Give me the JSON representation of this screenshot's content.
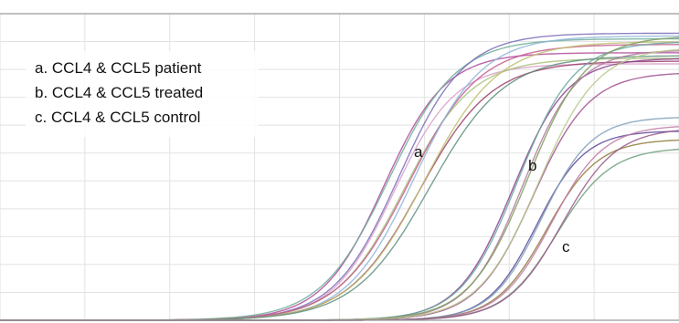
{
  "chart_data": {
    "type": "line",
    "title": "",
    "xlabel": "",
    "ylabel": "",
    "grid": true,
    "legend_position": "top-left",
    "legend": [
      "a. CCL4 & CCL5 patient",
      "b. CCL4 & CCL5 treated",
      "c. CCL4 & CCL5 control"
    ],
    "curve_labels": [
      "a",
      "b",
      "c"
    ],
    "xlim": [
      0,
      40
    ],
    "ylim": [
      0,
      11
    ],
    "x_gridlines": 8,
    "y_gridlines": 11,
    "series": [
      {
        "group": "a",
        "color": "#b04a9a",
        "midpoint": 22.6,
        "steepness": 0.55,
        "plateau": 9.6
      },
      {
        "group": "a",
        "color": "#6fae9a",
        "midpoint": 22.9,
        "steepness": 0.5,
        "plateau": 10.1
      },
      {
        "group": "a",
        "color": "#d9a0c8",
        "midpoint": 23.2,
        "steepness": 0.55,
        "plateau": 9.2
      },
      {
        "group": "a",
        "color": "#7b6cb8",
        "midpoint": 23.5,
        "steepness": 0.52,
        "plateau": 10.3
      },
      {
        "group": "a",
        "color": "#a9c17a",
        "midpoint": 23.8,
        "steepness": 0.5,
        "plateau": 9.4
      },
      {
        "group": "a",
        "color": "#c45a8e",
        "midpoint": 24.1,
        "steepness": 0.48,
        "plateau": 9.9
      },
      {
        "group": "a",
        "color": "#8fb6d8",
        "midpoint": 24.4,
        "steepness": 0.5,
        "plateau": 10.2
      },
      {
        "group": "a",
        "color": "#9b3f6a",
        "midpoint": 24.7,
        "steepness": 0.47,
        "plateau": 9.3
      },
      {
        "group": "a",
        "color": "#c0c070",
        "midpoint": 25.0,
        "steepness": 0.46,
        "plateau": 10.0
      },
      {
        "group": "a",
        "color": "#5f8f7f",
        "midpoint": 25.3,
        "steepness": 0.45,
        "plateau": 9.5
      },
      {
        "group": "b",
        "color": "#8a3f8f",
        "midpoint": 30.2,
        "steepness": 0.62,
        "plateau": 9.4
      },
      {
        "group": "b",
        "color": "#6aa7a0",
        "midpoint": 30.5,
        "steepness": 0.6,
        "plateau": 10.0
      },
      {
        "group": "b",
        "color": "#b07aa0",
        "midpoint": 30.8,
        "steepness": 0.62,
        "plateau": 9.7
      },
      {
        "group": "b",
        "color": "#7f9f5f",
        "midpoint": 31.1,
        "steepness": 0.58,
        "plateau": 10.2
      },
      {
        "group": "b",
        "color": "#a05090",
        "midpoint": 31.4,
        "steepness": 0.6,
        "plateau": 8.9
      },
      {
        "group": "b",
        "color": "#b6c98a",
        "midpoint": 31.7,
        "steepness": 0.57,
        "plateau": 9.8
      },
      {
        "group": "c",
        "color": "#5a4a9a",
        "midpoint": 31.6,
        "steepness": 0.7,
        "plateau": 6.8
      },
      {
        "group": "c",
        "color": "#7fa0b8",
        "midpoint": 31.9,
        "steepness": 0.68,
        "plateau": 7.3
      },
      {
        "group": "c",
        "color": "#8d7a3a",
        "midpoint": 32.2,
        "steepness": 0.66,
        "plateau": 6.5
      },
      {
        "group": "c",
        "color": "#c27aa6",
        "midpoint": 32.5,
        "steepness": 0.65,
        "plateau": 7.0
      },
      {
        "group": "c",
        "color": "#6f9f7a",
        "midpoint": 32.8,
        "steepness": 0.63,
        "plateau": 6.2
      },
      {
        "group": "c",
        "color": "#9a5a8a",
        "midpoint": 33.1,
        "steepness": 0.62,
        "plateau": 6.9
      }
    ]
  }
}
